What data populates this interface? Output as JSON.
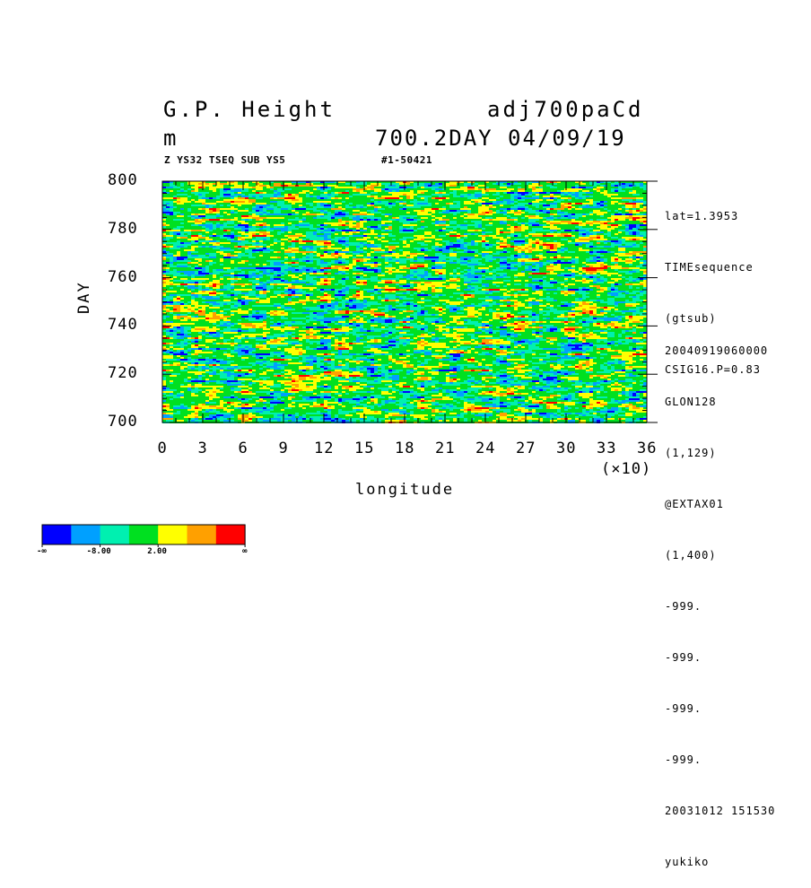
{
  "header": {
    "title_left": "G.P. Height",
    "title_right": "adj700paCd",
    "unit": "m",
    "subtitle_right": "700.2DAY 04/09/19",
    "sub_left": "Z YS32 TSEQ SUB YS5",
    "sub_right": "#1-50421"
  },
  "side_info": {
    "top": [
      "lat=1.3953",
      "TIMEsequence",
      "(gtsub)",
      "CSIG16.P=0.83"
    ],
    "bottom": [
      "20040919060000",
      "GLON128",
      "(1,129)",
      "@EXTAX01",
      "(1,400)",
      "-999.",
      "-999.",
      "-999.",
      "-999.",
      "20031012 151530",
      "yukiko"
    ]
  },
  "chart_data": {
    "type": "heatmap",
    "title": "G.P. Height",
    "xlabel": "longitude",
    "ylabel": "DAY",
    "x_multiplier": "(×10)",
    "xlim": [
      0,
      36
    ],
    "ylim": [
      700,
      800
    ],
    "x_ticks": [
      "0",
      "3",
      "6",
      "9",
      "12",
      "15",
      "18",
      "21",
      "24",
      "27",
      "30",
      "33",
      "36"
    ],
    "y_ticks": [
      "700",
      "720",
      "740",
      "760",
      "780",
      "800"
    ],
    "colorbar": {
      "colors": [
        "#0000ff",
        "#00a0ff",
        "#00f0b0",
        "#00e020",
        "#ffff00",
        "#ffa000",
        "#ff0000"
      ],
      "labels": [
        "-∞",
        "-8.00",
        "2.00",
        "∞"
      ]
    }
  }
}
